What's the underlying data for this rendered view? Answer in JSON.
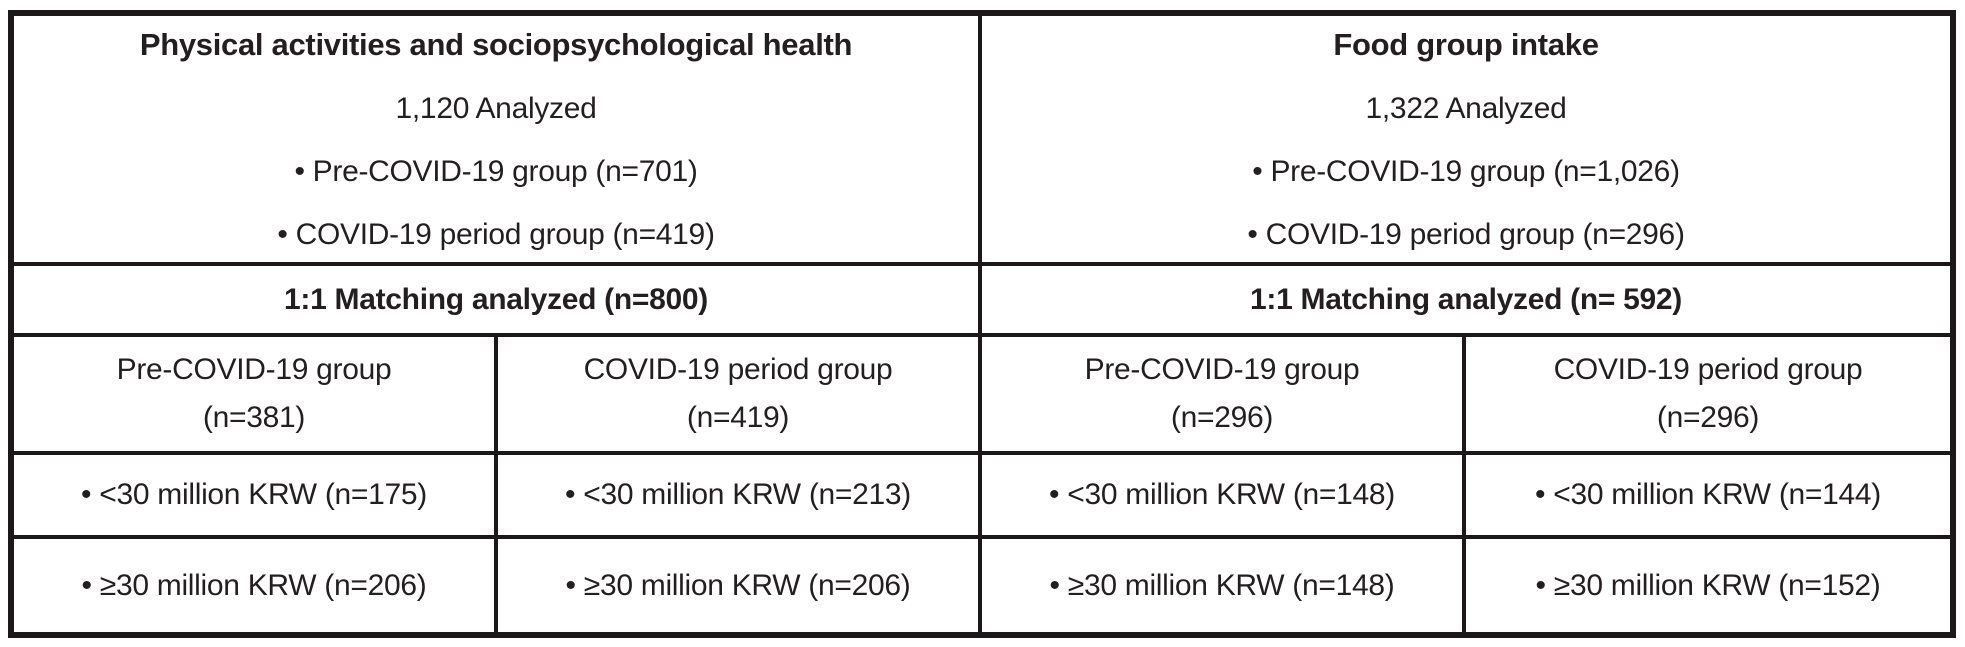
{
  "colors": {
    "border": "#1c1819",
    "text": "#231f20",
    "background": "#ffffff"
  },
  "branches": [
    {
      "title": "Physical activities and sociopsychological health",
      "analyzed": "1,120 Analyzed",
      "bullet_pre": "• Pre-COVID-19 group (n=701)",
      "bullet_period": "• COVID-19 period group (n=419)",
      "matching": "1:1 Matching analyzed (n=800)"
    },
    {
      "title": "Food group intake",
      "analyzed": "1,322 Analyzed",
      "bullet_pre": "• Pre-COVID-19 group (n=1,026)",
      "bullet_period": "• COVID-19 period group (n=296)",
      "matching": "1:1 Matching analyzed (n= 592)"
    }
  ],
  "groups": [
    {
      "name": "Pre-COVID-19 group",
      "n": "(n=381)",
      "income_low": "• <30 million KRW (n=175)",
      "income_high": "• ≥30 million KRW (n=206)"
    },
    {
      "name": "COVID-19 period group",
      "n": "(n=419)",
      "income_low": "• <30 million KRW (n=213)",
      "income_high": "• ≥30 million KRW (n=206)"
    },
    {
      "name": "Pre-COVID-19 group",
      "n": "(n=296)",
      "income_low": "• <30 million KRW (n=148)",
      "income_high": "• ≥30 million KRW (n=148)"
    },
    {
      "name": "COVID-19 period group",
      "n": "(n=296)",
      "income_low": "• <30 million KRW (n=144)",
      "income_high": "• ≥30 million KRW (n=152)"
    }
  ]
}
